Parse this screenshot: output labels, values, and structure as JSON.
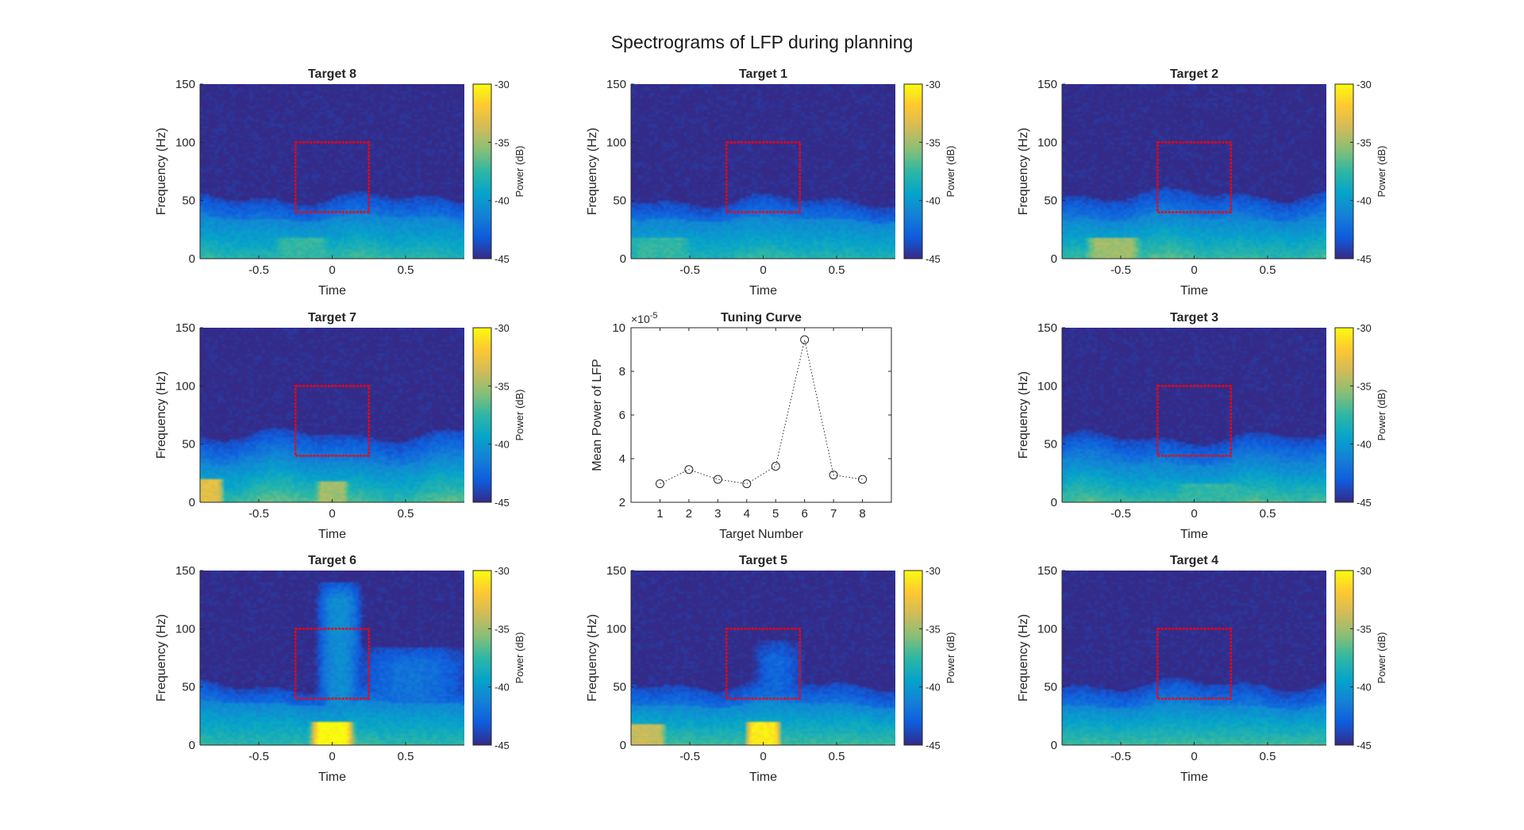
{
  "figure": {
    "title": "Spectrograms of LFP during planning"
  },
  "colors": {
    "parula": [
      "#352a87",
      "#0f5cdd",
      "#1481d6",
      "#06a4ca",
      "#2eb7a4",
      "#87bf77",
      "#d1bb59",
      "#fec832",
      "#f9fb0e"
    ],
    "box": "#ff0000",
    "marker": "#262626",
    "axis": "#262626"
  },
  "chart_data": [
    {
      "type": "heatmap",
      "title": "Target 8",
      "xlabel": "Time",
      "ylabel": "Frequency (Hz)",
      "xlim": [
        -0.9,
        0.9
      ],
      "ylim": [
        0,
        150
      ],
      "xticks": [
        "-0.5",
        "0",
        "0.5"
      ],
      "yticks": [
        "0",
        "50",
        "100",
        "150"
      ],
      "colorbar": {
        "label": "Power (dB)",
        "clim": [
          -45,
          -30
        ],
        "ticks": [
          "-30",
          "-35",
          "-40",
          "-45"
        ]
      },
      "box": {
        "time": [
          -0.25,
          0.25
        ],
        "freq": [
          40,
          100
        ]
      },
      "profile": {
        "noise_top_hz": 52,
        "band_top_hz": 35,
        "low_power_db": -38.5,
        "bursts": [
          [
            -0.2,
            0.2,
            18,
            -37.5
          ]
        ],
        "broadband": []
      }
    },
    {
      "type": "heatmap",
      "title": "Target 1",
      "xlabel": "Time",
      "ylabel": "Frequency (Hz)",
      "xlim": [
        -0.9,
        0.9
      ],
      "ylim": [
        0,
        150
      ],
      "xticks": [
        "-0.5",
        "0",
        "0.5"
      ],
      "yticks": [
        "0",
        "50",
        "100",
        "150"
      ],
      "colorbar": {
        "label": "Power (dB)",
        "clim": [
          -45,
          -30
        ],
        "ticks": [
          "-30",
          "-35",
          "-40",
          "-45"
        ]
      },
      "box": {
        "time": [
          -0.25,
          0.25
        ],
        "freq": [
          40,
          100
        ]
      },
      "profile": {
        "noise_top_hz": 50,
        "band_top_hz": 34,
        "low_power_db": -38.5,
        "bursts": [
          [
            -0.7,
            0.22,
            18,
            -37.5
          ]
        ],
        "broadband": []
      }
    },
    {
      "type": "heatmap",
      "title": "Target 2",
      "xlabel": "Time",
      "ylabel": "Frequency (Hz)",
      "xlim": [
        -0.9,
        0.9
      ],
      "ylim": [
        0,
        150
      ],
      "xticks": [
        "-0.5",
        "0",
        "0.5"
      ],
      "yticks": [
        "0",
        "50",
        "100",
        "150"
      ],
      "colorbar": {
        "label": "Power (dB)",
        "clim": [
          -45,
          -30
        ],
        "ticks": [
          "-30",
          "-35",
          "-40",
          "-45"
        ]
      },
      "box": {
        "time": [
          -0.25,
          0.25
        ],
        "freq": [
          40,
          100
        ]
      },
      "profile": {
        "noise_top_hz": 55,
        "band_top_hz": 35,
        "low_power_db": -38.0,
        "bursts": [
          [
            -0.55,
            0.2,
            18,
            -35.0
          ]
        ],
        "broadband": []
      }
    },
    {
      "type": "heatmap",
      "title": "Target 7",
      "xlabel": "Time",
      "ylabel": "Frequency (Hz)",
      "xlim": [
        -0.9,
        0.9
      ],
      "ylim": [
        0,
        150
      ],
      "xticks": [
        "-0.5",
        "0",
        "0.5"
      ],
      "yticks": [
        "0",
        "50",
        "100",
        "150"
      ],
      "colorbar": {
        "label": "Power (dB)",
        "clim": [
          -45,
          -30
        ],
        "ticks": [
          "-30",
          "-35",
          "-40",
          "-45"
        ]
      },
      "box": {
        "time": [
          -0.25,
          0.25
        ],
        "freq": [
          40,
          100
        ]
      },
      "profile": {
        "noise_top_hz": 58,
        "band_top_hz": 35,
        "low_power_db": -38.0,
        "bursts": [
          [
            -0.85,
            0.12,
            20,
            -33.0
          ],
          [
            0.0,
            0.12,
            18,
            -35.0
          ]
        ],
        "broadband": []
      }
    },
    {
      "type": "line",
      "title": "Tuning Curve",
      "xlabel": "Target Number",
      "ylabel": "Mean Power of LFP",
      "y_exponent": "×10",
      "y_exponent_power": "-5",
      "xlim": [
        0,
        9
      ],
      "ylim": [
        2,
        10
      ],
      "xticks": [
        "1",
        "2",
        "3",
        "4",
        "5",
        "6",
        "7",
        "8"
      ],
      "yticks": [
        "2",
        "4",
        "6",
        "8",
        "10"
      ],
      "x": [
        1,
        2,
        3,
        4,
        5,
        6,
        7,
        8
      ],
      "y": [
        2.85,
        3.5,
        3.05,
        2.85,
        3.65,
        9.45,
        3.25,
        3.05
      ],
      "line_style": "dotted",
      "marker": "circle",
      "grid": false
    },
    {
      "type": "heatmap",
      "title": "Target 3",
      "xlabel": "Time",
      "ylabel": "Frequency (Hz)",
      "xlim": [
        -0.9,
        0.9
      ],
      "ylim": [
        0,
        150
      ],
      "xticks": [
        "-0.5",
        "0",
        "0.5"
      ],
      "yticks": [
        "0",
        "50",
        "100",
        "150"
      ],
      "colorbar": {
        "label": "Power (dB)",
        "clim": [
          -45,
          -30
        ],
        "ticks": [
          "-30",
          "-35",
          "-40",
          "-45"
        ]
      },
      "box": {
        "time": [
          -0.25,
          0.25
        ],
        "freq": [
          40,
          100
        ]
      },
      "profile": {
        "noise_top_hz": 55,
        "band_top_hz": 34,
        "low_power_db": -38.5,
        "bursts": [
          [
            0.1,
            0.25,
            16,
            -37.5
          ]
        ],
        "broadband": []
      }
    },
    {
      "type": "heatmap",
      "title": "Target 6",
      "xlabel": "Time",
      "ylabel": "Frequency (Hz)",
      "xlim": [
        -0.9,
        0.9
      ],
      "ylim": [
        0,
        150
      ],
      "xticks": [
        "-0.5",
        "0",
        "0.5"
      ],
      "yticks": [
        "0",
        "50",
        "100",
        "150"
      ],
      "colorbar": {
        "label": "Power (dB)",
        "clim": [
          -45,
          -30
        ],
        "ticks": [
          "-30",
          "-35",
          "-40",
          "-45"
        ]
      },
      "box": {
        "time": [
          -0.25,
          0.25
        ],
        "freq": [
          40,
          100
        ]
      },
      "profile": {
        "noise_top_hz": 50,
        "band_top_hz": 36,
        "low_power_db": -38.0,
        "bursts": [
          [
            0.0,
            0.16,
            20,
            -30.0
          ]
        ],
        "broadband": [
          [
            0.05,
            0.17,
            140,
            -40.5
          ],
          [
            0.55,
            0.45,
            85,
            -42.0
          ]
        ]
      }
    },
    {
      "type": "heatmap",
      "title": "Target 5",
      "xlabel": "Time",
      "ylabel": "Frequency (Hz)",
      "xlim": [
        -0.9,
        0.9
      ],
      "ylim": [
        0,
        150
      ],
      "xticks": [
        "-0.5",
        "0",
        "0.5"
      ],
      "yticks": [
        "0",
        "50",
        "100",
        "150"
      ],
      "colorbar": {
        "label": "Power (dB)",
        "clim": [
          -45,
          -30
        ],
        "ticks": [
          "-30",
          "-35",
          "-40",
          "-45"
        ]
      },
      "box": {
        "time": [
          -0.25,
          0.25
        ],
        "freq": [
          40,
          100
        ]
      },
      "profile": {
        "noise_top_hz": 52,
        "band_top_hz": 35,
        "low_power_db": -37.5,
        "bursts": [
          [
            0.0,
            0.13,
            20,
            -30.5
          ],
          [
            -0.8,
            0.15,
            18,
            -34.0
          ]
        ],
        "broadband": [
          [
            0.1,
            0.18,
            90,
            -42.5
          ]
        ]
      }
    },
    {
      "type": "heatmap",
      "title": "Target 4",
      "xlabel": "Time",
      "ylabel": "Frequency (Hz)",
      "xlim": [
        -0.9,
        0.9
      ],
      "ylim": [
        0,
        150
      ],
      "xticks": [
        "-0.5",
        "0",
        "0.5"
      ],
      "yticks": [
        "0",
        "50",
        "100",
        "150"
      ],
      "colorbar": {
        "label": "Power (dB)",
        "clim": [
          -45,
          -30
        ],
        "ticks": [
          "-30",
          "-35",
          "-40",
          "-45"
        ]
      },
      "box": {
        "time": [
          -0.25,
          0.25
        ],
        "freq": [
          40,
          100
        ]
      },
      "profile": {
        "noise_top_hz": 52,
        "band_top_hz": 34,
        "low_power_db": -37.5,
        "bursts": [],
        "broadband": []
      }
    }
  ]
}
